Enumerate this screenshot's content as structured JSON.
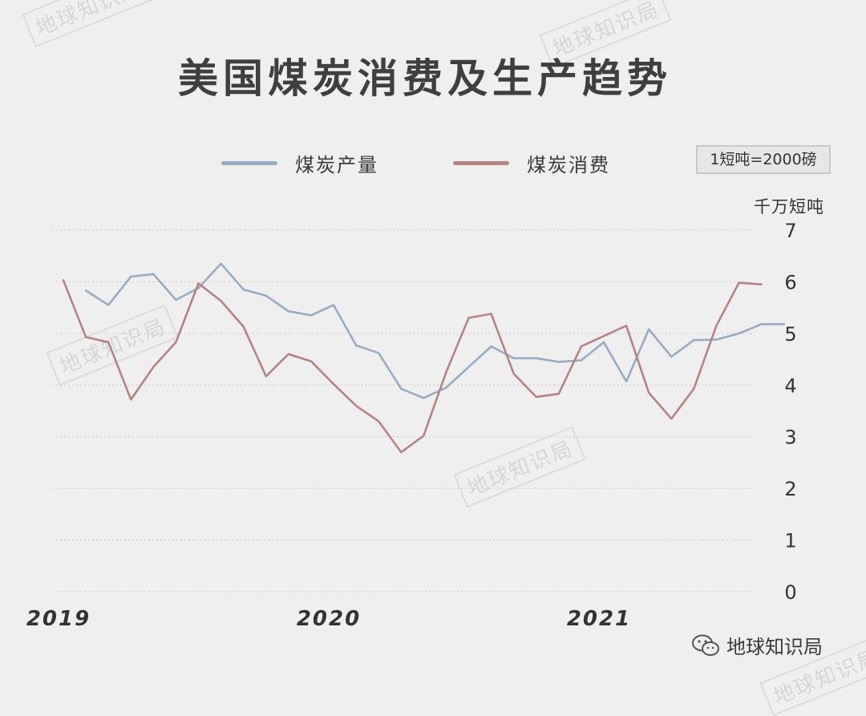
{
  "watermark_text": "地球知识局",
  "title": "美国煤炭消费及生产趋势",
  "note": "1短吨=2000磅",
  "unit": "千万短吨",
  "footer": {
    "brand": "地球知识局",
    "icon": "wechat-icon"
  },
  "colors": {
    "production": "#97adc4",
    "consumption": "#b98282",
    "title": "#3f3f3f",
    "background": "#efefef"
  },
  "chart_data": {
    "type": "line",
    "title": "美国煤炭消费及生产趋势",
    "ylabel": "千万短吨",
    "ylim": [
      0,
      7
    ],
    "yticks": [
      0,
      1,
      2,
      3,
      4,
      5,
      6,
      7
    ],
    "x_tick_labels": [
      {
        "label": "2019",
        "x": 2019.0
      },
      {
        "label": "2020",
        "x": 2020.0
      },
      {
        "label": "2021",
        "x": 2021.0
      }
    ],
    "grid": true,
    "legend_position": "top",
    "series": [
      {
        "name": "煤炭产量",
        "color": "#97adc4",
        "x": [
          2019.0833,
          2019.1667,
          2019.25,
          2019.3333,
          2019.4167,
          2019.5,
          2019.5833,
          2019.6667,
          2019.75,
          2019.8333,
          2019.9167,
          2020.0,
          2020.0833,
          2020.1667,
          2020.25,
          2020.3333,
          2020.4167,
          2020.5,
          2020.5833,
          2020.6667,
          2020.75,
          2020.8333,
          2020.9167,
          2021.0,
          2021.0833,
          2021.1667,
          2021.25,
          2021.3333,
          2021.4167,
          2021.5,
          2021.5833,
          2021.6667
        ],
        "values": [
          5.83,
          5.55,
          6.1,
          6.15,
          5.65,
          5.88,
          6.35,
          5.85,
          5.73,
          5.43,
          5.35,
          5.55,
          4.77,
          4.62,
          3.93,
          3.75,
          3.95,
          4.35,
          4.75,
          4.52,
          4.52,
          4.45,
          4.48,
          4.83,
          4.07,
          5.08,
          4.55,
          4.87,
          4.88,
          5.0,
          5.18,
          5.18
        ]
      },
      {
        "name": "煤炭消费",
        "color": "#b98282",
        "x": [
          2019.0,
          2019.0833,
          2019.1667,
          2019.25,
          2019.3333,
          2019.4167,
          2019.5,
          2019.5833,
          2019.6667,
          2019.75,
          2019.8333,
          2019.9167,
          2020.0,
          2020.0833,
          2020.1667,
          2020.25,
          2020.3333,
          2020.4167,
          2020.5,
          2020.5833,
          2020.6667,
          2020.75,
          2020.8333,
          2020.9167,
          2021.0,
          2021.0833,
          2021.1667,
          2021.25,
          2021.3333,
          2021.4167,
          2021.5,
          2021.5833
        ],
        "values": [
          6.03,
          4.93,
          4.83,
          3.72,
          4.35,
          4.83,
          5.97,
          5.63,
          5.13,
          4.17,
          4.6,
          4.46,
          4.02,
          3.6,
          3.3,
          2.7,
          3.02,
          4.25,
          5.3,
          5.38,
          4.22,
          3.77,
          3.83,
          4.75,
          4.95,
          5.15,
          3.85,
          3.35,
          3.93,
          5.15,
          5.98,
          5.95
        ]
      }
    ]
  }
}
